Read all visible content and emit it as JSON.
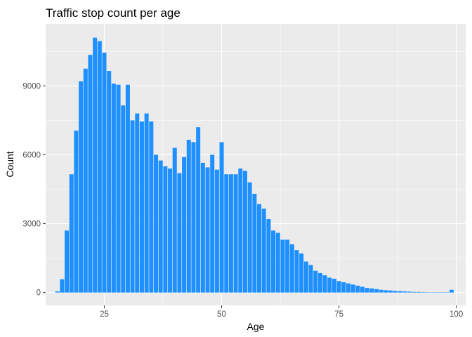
{
  "chart_data": {
    "type": "bar",
    "title": "Traffic stop count per age",
    "xlabel": "Age",
    "ylabel": "Count",
    "xlim": [
      12.5,
      102
    ],
    "ylim": [
      -560,
      11700
    ],
    "x_ticks": [
      25,
      50,
      75,
      100
    ],
    "y_ticks": [
      0,
      3000,
      6000,
      9000
    ],
    "x_tick_labels": [
      "25",
      "50",
      "75",
      "100"
    ],
    "y_tick_labels": [
      "0",
      "3000",
      "6000",
      "9000"
    ],
    "grid": true,
    "bar_color": "#1e90ff",
    "panel_background": "#ebebeb",
    "gridline_color": "#ffffff",
    "x": [
      15,
      16,
      17,
      18,
      19,
      20,
      21,
      22,
      23,
      24,
      25,
      26,
      27,
      28,
      29,
      30,
      31,
      32,
      33,
      34,
      35,
      36,
      37,
      38,
      39,
      40,
      41,
      42,
      43,
      44,
      45,
      46,
      47,
      48,
      49,
      50,
      51,
      52,
      53,
      54,
      55,
      56,
      57,
      58,
      59,
      60,
      61,
      62,
      63,
      64,
      65,
      66,
      67,
      68,
      69,
      70,
      71,
      72,
      73,
      74,
      75,
      76,
      77,
      78,
      79,
      80,
      81,
      82,
      83,
      84,
      85,
      86,
      87,
      88,
      89,
      90,
      91,
      92,
      93,
      94,
      95,
      96,
      97,
      98,
      99
    ],
    "values": [
      50,
      580,
      2700,
      5150,
      7050,
      9200,
      9750,
      10350,
      11100,
      10950,
      10450,
      9650,
      9100,
      9050,
      8150,
      9050,
      7500,
      7800,
      7450,
      7800,
      7450,
      6000,
      5750,
      5500,
      5400,
      6300,
      5200,
      5900,
      6650,
      6550,
      7200,
      5650,
      5450,
      6000,
      5350,
      6550,
      5150,
      5150,
      5150,
      5400,
      5300,
      4800,
      4300,
      3850,
      3650,
      3200,
      2700,
      2600,
      2300,
      2300,
      2100,
      1850,
      1700,
      1350,
      1200,
      950,
      850,
      750,
      650,
      600,
      500,
      450,
      400,
      350,
      300,
      250,
      200,
      180,
      150,
      120,
      100,
      90,
      70,
      60,
      50,
      40,
      30,
      25,
      20,
      15,
      10,
      10,
      10,
      10,
      120
    ]
  }
}
